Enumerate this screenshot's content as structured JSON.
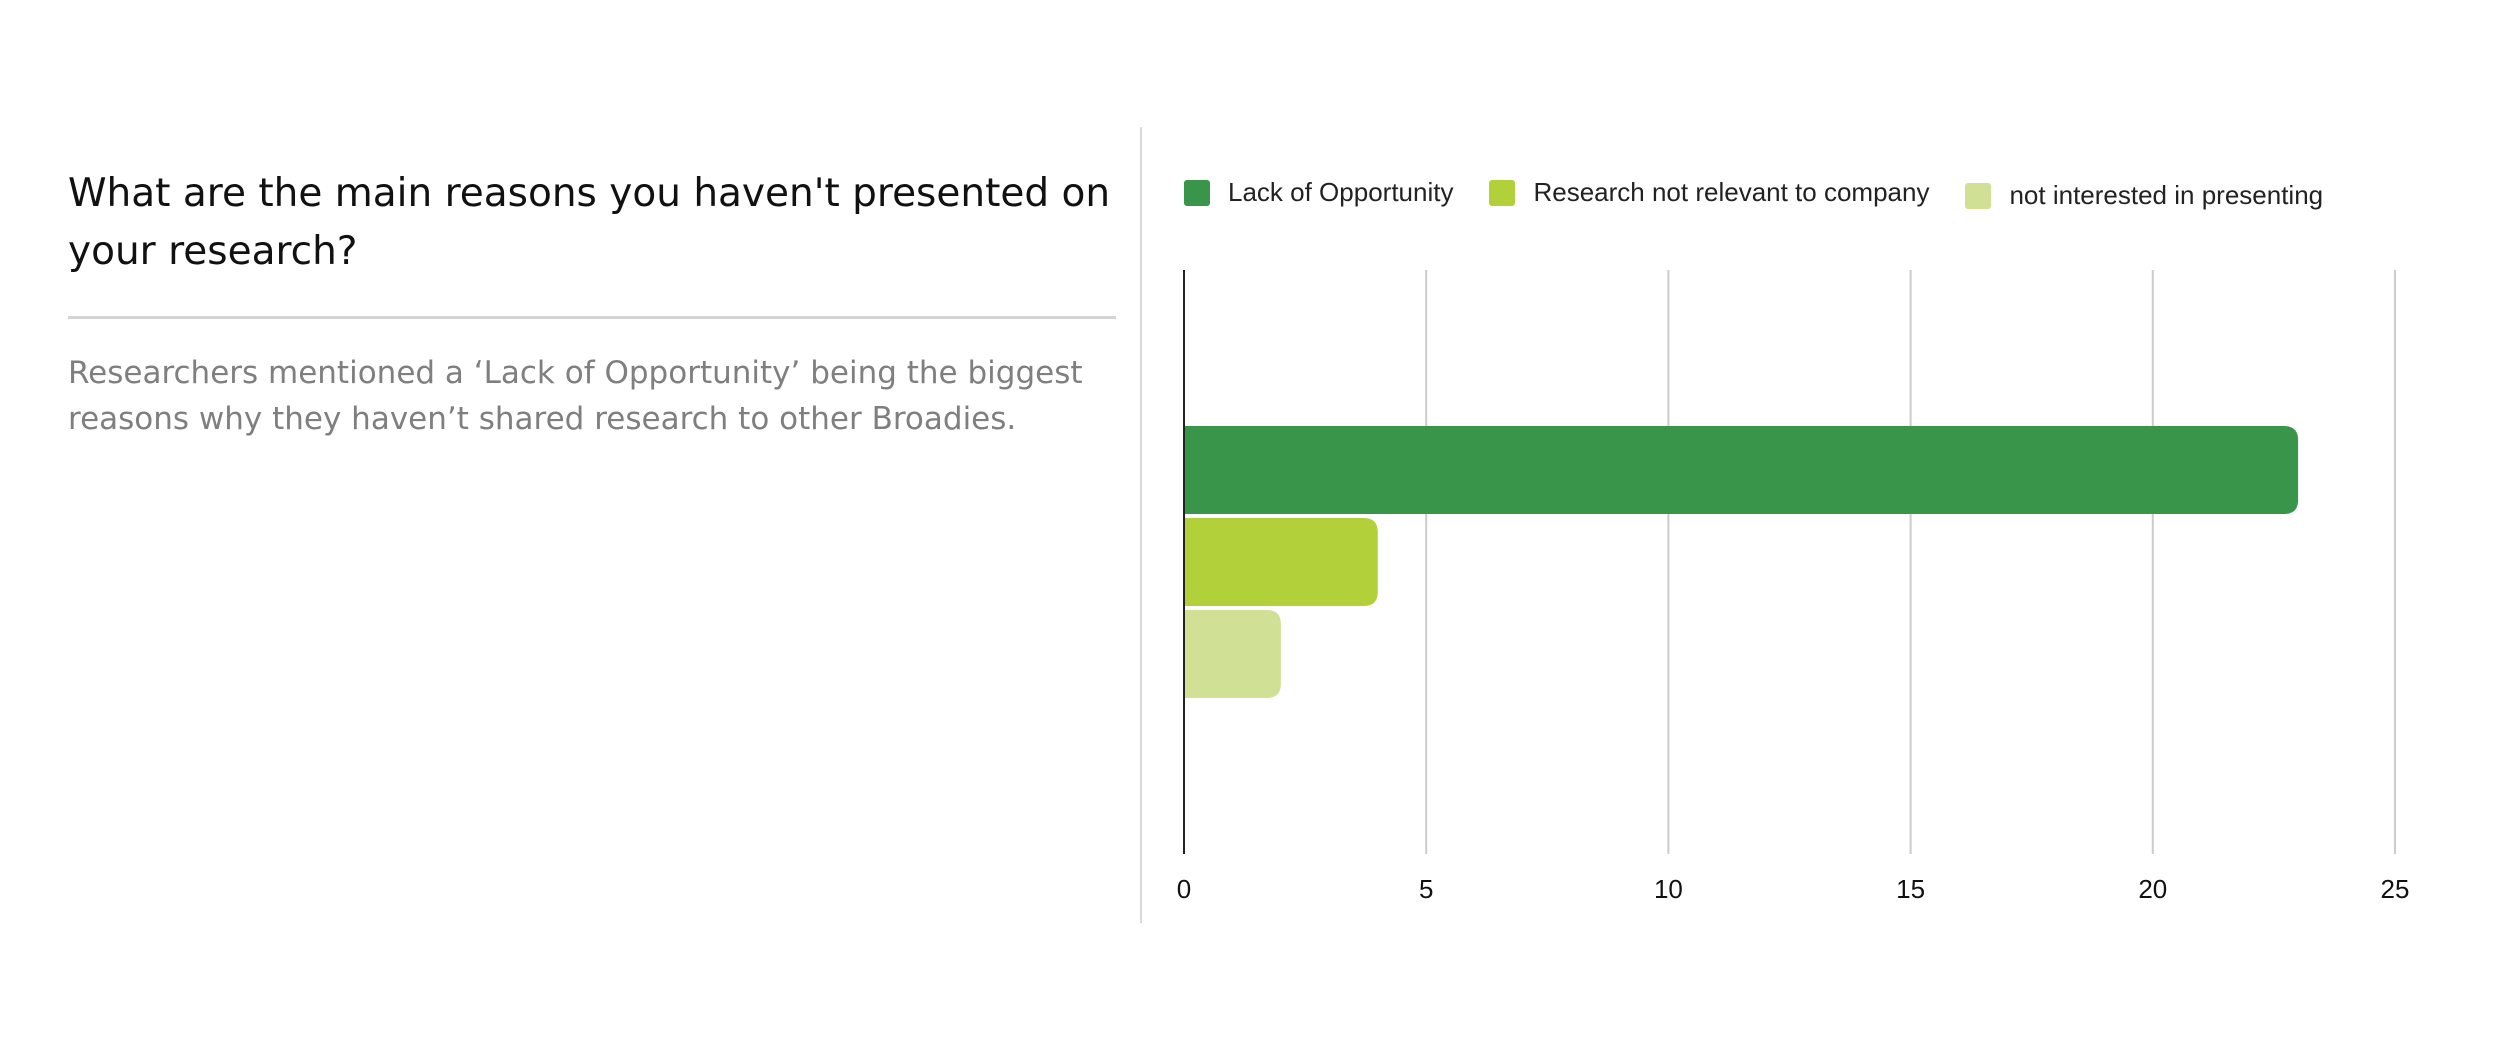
{
  "question": {
    "title": "What are the main reasons you haven't presented on your research?"
  },
  "summary": {
    "text": "Researchers mentioned a ‘Lack of Opportunity’ being the biggest reasons why they haven’t shared research to other Broadies."
  },
  "chart_data": {
    "type": "bar",
    "orientation": "horizontal",
    "title": "",
    "xlabel": "",
    "ylabel": "",
    "xlim": [
      0,
      25
    ],
    "x_ticks": [
      "0",
      "5",
      "10",
      "15",
      "20",
      "25"
    ],
    "grid": true,
    "legend_position": "top",
    "series": [
      {
        "name": "Lack of Opportunity",
        "value": 23,
        "color": "#38954a"
      },
      {
        "name": "Research not relevant to company",
        "value": 4,
        "color": "#b1d03a"
      },
      {
        "name": "not interested in presenting",
        "value": 2,
        "color": "#d0e095"
      }
    ]
  }
}
